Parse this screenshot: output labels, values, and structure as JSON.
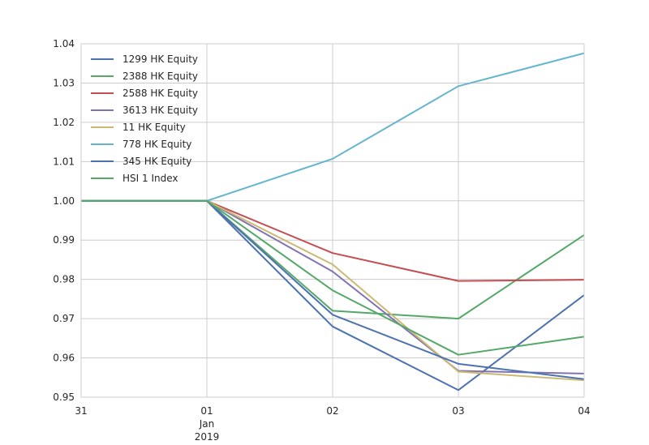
{
  "chart_data": {
    "type": "line",
    "x": [
      "31",
      "01",
      "02",
      "03",
      "04"
    ],
    "x_tick_sublabels": {
      "01": [
        "Jan",
        "2019"
      ]
    },
    "ylim": [
      0.95,
      1.04
    ],
    "yticks": [
      "0.95",
      "0.96",
      "0.97",
      "0.98",
      "0.99",
      "1.00",
      "1.01",
      "1.02",
      "1.03",
      "1.04"
    ],
    "grid": true,
    "legend_position": "top-left",
    "series": [
      {
        "name": "1299 HK Equity",
        "color": "#4c72b0",
        "values": [
          1.0,
          1.0,
          0.968,
          0.9518,
          0.976
        ]
      },
      {
        "name": "2388 HK Equity",
        "color": "#55a868",
        "values": [
          1.0,
          1.0,
          0.972,
          0.97,
          0.9913
        ]
      },
      {
        "name": "2588 HK Equity",
        "color": "#c44e52",
        "values": [
          1.0,
          1.0,
          0.9867,
          0.9796,
          0.9799
        ]
      },
      {
        "name": "3613 HK Equity",
        "color": "#8172b2",
        "values": [
          1.0,
          1.0,
          0.982,
          0.9567,
          0.956
        ]
      },
      {
        "name": "11 HK Equity",
        "color": "#ccb974",
        "values": [
          1.0,
          1.0,
          0.9838,
          0.9565,
          0.9543
        ]
      },
      {
        "name": "778 HK Equity",
        "color": "#64b5cd",
        "values": [
          1.0,
          1.0,
          1.0107,
          1.0292,
          1.0376
        ]
      },
      {
        "name": "345 HK Equity",
        "color": "#4c72b0",
        "values": [
          1.0,
          1.0,
          0.971,
          0.9585,
          0.9546
        ]
      },
      {
        "name": "HSI 1 Index",
        "color": "#55a868",
        "values": [
          1.0,
          1.0,
          0.9772,
          0.9608,
          0.9654
        ]
      }
    ]
  }
}
